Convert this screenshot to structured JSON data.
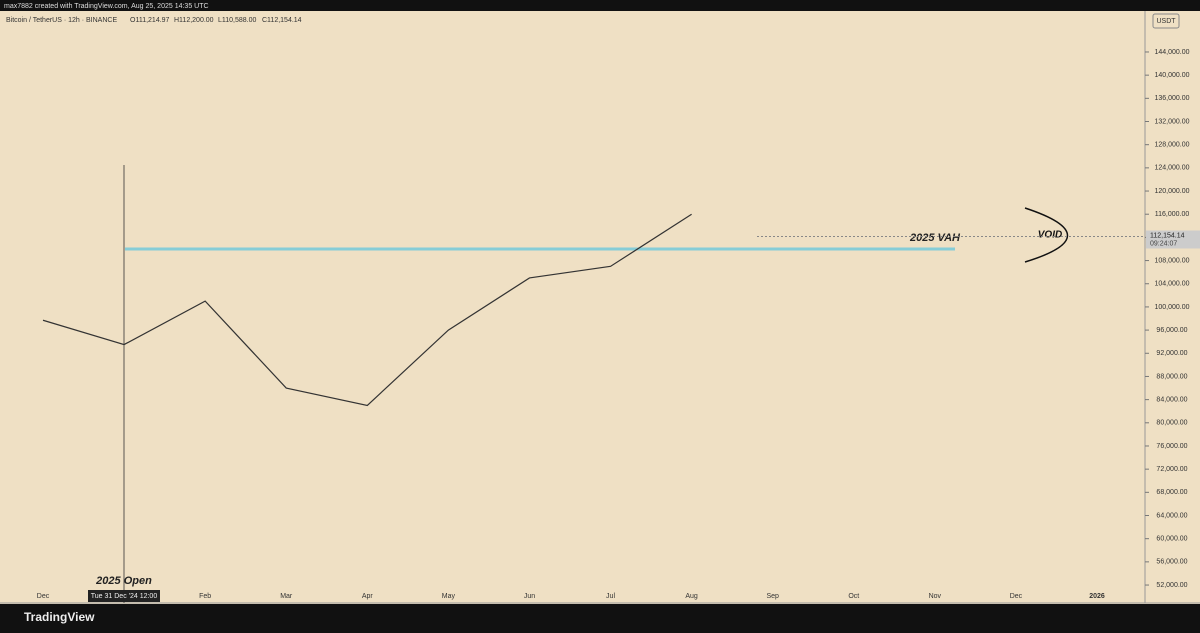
{
  "header": {
    "text": "max7882 created with TradingView.com, Aug 25, 2025 14:35 UTC"
  },
  "footer": {
    "brand": "TradingView"
  },
  "chart_data": {
    "type": "line",
    "title": "Bitcoin / TetherUS · 12h · BINANCE",
    "ohlc": [
      "O111,214.97",
      "H112,200.00",
      "L110,588.00",
      "C112,154.14"
    ],
    "currency": "USDT",
    "categories": [
      "Dec",
      null,
      "Feb",
      "Mar",
      "Apr",
      "May",
      "Jun",
      "Jul",
      "Aug",
      "Sep",
      "Oct",
      "Nov",
      "Dec",
      "2026"
    ],
    "values": [
      97700,
      93500,
      101000,
      86000,
      83000,
      96000,
      105000,
      107000,
      116000,
      null,
      null,
      null,
      null,
      null
    ],
    "color": "#333333",
    "ylim": [
      48900,
      150900
    ],
    "yticks": [
      {
        "value": 52000,
        "label": "52,000.00"
      },
      {
        "value": 56000,
        "label": "56,000.00"
      },
      {
        "value": 60000,
        "label": "60,000.00"
      },
      {
        "value": 64000,
        "label": "64,000.00"
      },
      {
        "value": 68000,
        "label": "68,000.00"
      },
      {
        "value": 72000,
        "label": "72,000.00"
      },
      {
        "value": 76000,
        "label": "76,000.00"
      },
      {
        "value": 80000,
        "label": "80,000.00"
      },
      {
        "value": 84000,
        "label": "84,000.00"
      },
      {
        "value": 88000,
        "label": "88,000.00"
      },
      {
        "value": 92000,
        "label": "92,000.00"
      },
      {
        "value": 96000,
        "label": "96,000.00"
      },
      {
        "value": 100000,
        "label": "100,000.00"
      },
      {
        "value": 104000,
        "label": "104,000.00"
      },
      {
        "value": 108000,
        "label": "108,000.00"
      },
      {
        "value": 112000,
        "label": "112,000.00"
      },
      {
        "value": 116000,
        "label": "116,000.00"
      },
      {
        "value": 120000,
        "label": "120,000.00"
      },
      {
        "value": 124000,
        "label": "124,000.00"
      },
      {
        "value": 128000,
        "label": "128,000.00"
      },
      {
        "value": 132000,
        "label": "132,000.00"
      },
      {
        "value": 136000,
        "label": "136,000.00"
      },
      {
        "value": 140000,
        "label": "140,000.00"
      },
      {
        "value": 144000,
        "label": "144,000.00"
      }
    ],
    "last_price": {
      "value": 112154.14,
      "label": "112,154.14",
      "countdown": "09:24:07"
    },
    "vah": {
      "value": 110000,
      "label": "2025 VAH"
    },
    "void_label": "VOID",
    "open_label": "2025 Open",
    "crosshair_label": "Tue 31 Dec '24   12:00"
  }
}
